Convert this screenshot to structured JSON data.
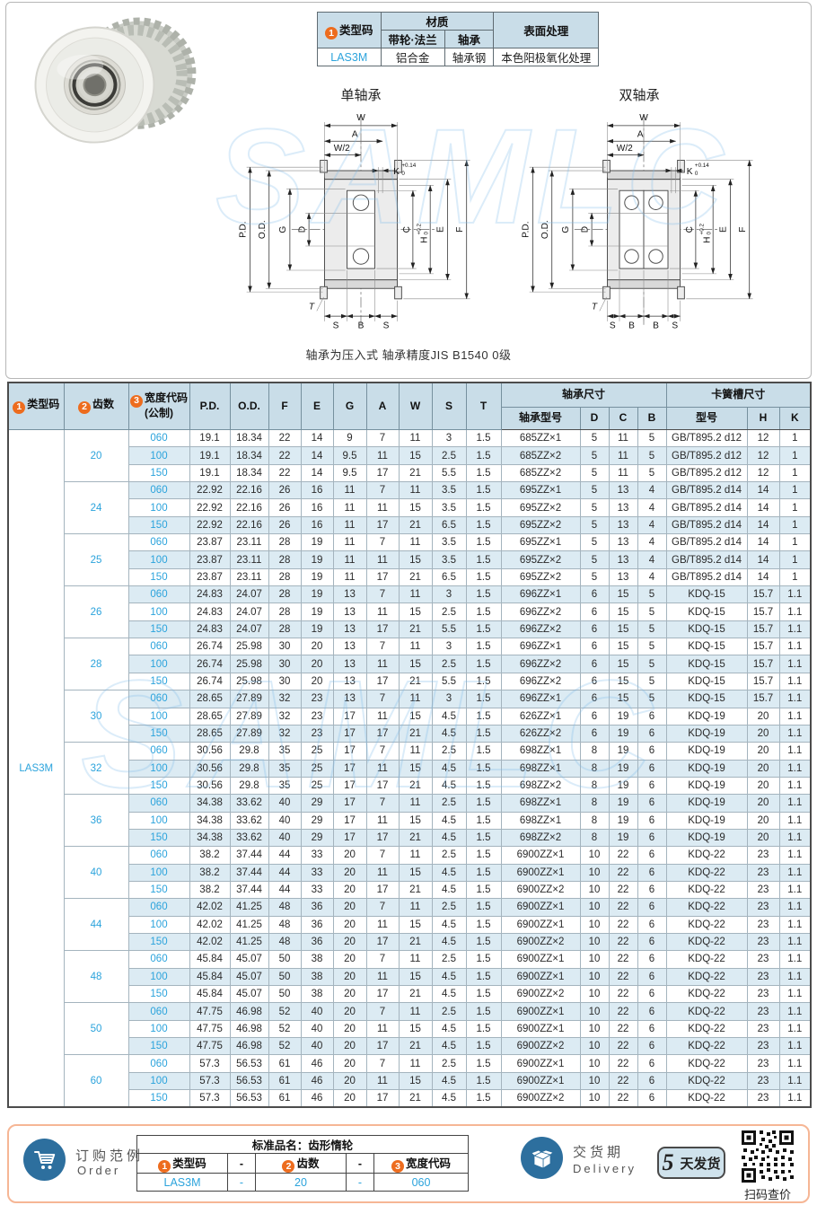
{
  "watermark": "SAMLC",
  "colors": {
    "accent_orange": "#ed6c1e",
    "accent_blue": "#2ba3dc",
    "header_bg": "#c9dde8",
    "band_bg": "#dcebf3",
    "badge_bg": "#cfe2ec",
    "bottom_border": "#f6b695",
    "icon_blue": "#2d6f9e"
  },
  "spec_table": {
    "badge1": "1",
    "h_type_code": "类型码",
    "h_material": "材质",
    "h_material_pulley": "带轮·法兰",
    "h_material_bearing": "轴承",
    "h_surface": "表面处理",
    "type_code": "LAS3M",
    "pulley_material": "铝合金",
    "bearing_material": "轴承钢",
    "surface": "本色阳极氧化处理"
  },
  "diagrams": {
    "single_title": "单轴承",
    "double_title": "双轴承",
    "note": "轴承为压入式 轴承精度JIS B1540 0级",
    "labels": {
      "w": "W",
      "a": "A",
      "w_half": "W/2",
      "k": "K",
      "k_tol_top": "+0.14",
      "k_tol_bot": "0",
      "pd": "P.D.",
      "od": "O.D.",
      "g": "G",
      "d": "D",
      "c": "C",
      "h": "H",
      "h_tol_top": "+0.2",
      "h_tol_bot": "0",
      "e": "E",
      "f": "F",
      "t": "T",
      "s": "S",
      "b": "B"
    }
  },
  "table": {
    "badge1": "1",
    "badge2": "2",
    "badge3": "3",
    "h_type_code": "类型码",
    "h_teeth": "齿数",
    "h_width_code": "宽度代码",
    "h_width_code_sub": "(公制)",
    "cols": [
      "P.D.",
      "O.D.",
      "F",
      "E",
      "G",
      "A",
      "W",
      "S",
      "T"
    ],
    "bearing_group": "轴承尺寸",
    "bearing_cols": [
      "轴承型号",
      "D",
      "C",
      "B"
    ],
    "circlip_group": "卡簧槽尺寸",
    "circlip_cols": [
      "型号",
      "H",
      "K"
    ],
    "type_code": "LAS3M",
    "groups": [
      {
        "teeth": "20",
        "rows": [
          [
            "060",
            "19.1",
            "18.34",
            "22",
            "14",
            "9",
            "7",
            "11",
            "3",
            "1.5",
            "685ZZ×1",
            "5",
            "11",
            "5",
            "GB/T895.2 d12",
            "12",
            "1"
          ],
          [
            "100",
            "19.1",
            "18.34",
            "22",
            "14",
            "9.5",
            "11",
            "15",
            "2.5",
            "1.5",
            "685ZZ×2",
            "5",
            "11",
            "5",
            "GB/T895.2 d12",
            "12",
            "1"
          ],
          [
            "150",
            "19.1",
            "18.34",
            "22",
            "14",
            "9.5",
            "17",
            "21",
            "5.5",
            "1.5",
            "685ZZ×2",
            "5",
            "11",
            "5",
            "GB/T895.2 d12",
            "12",
            "1"
          ]
        ]
      },
      {
        "teeth": "24",
        "rows": [
          [
            "060",
            "22.92",
            "22.16",
            "26",
            "16",
            "11",
            "7",
            "11",
            "3.5",
            "1.5",
            "695ZZ×1",
            "5",
            "13",
            "4",
            "GB/T895.2 d14",
            "14",
            "1"
          ],
          [
            "100",
            "22.92",
            "22.16",
            "26",
            "16",
            "11",
            "11",
            "15",
            "3.5",
            "1.5",
            "695ZZ×2",
            "5",
            "13",
            "4",
            "GB/T895.2 d14",
            "14",
            "1"
          ],
          [
            "150",
            "22.92",
            "22.16",
            "26",
            "16",
            "11",
            "17",
            "21",
            "6.5",
            "1.5",
            "695ZZ×2",
            "5",
            "13",
            "4",
            "GB/T895.2 d14",
            "14",
            "1"
          ]
        ]
      },
      {
        "teeth": "25",
        "rows": [
          [
            "060",
            "23.87",
            "23.11",
            "28",
            "19",
            "11",
            "7",
            "11",
            "3.5",
            "1.5",
            "695ZZ×1",
            "5",
            "13",
            "4",
            "GB/T895.2 d14",
            "14",
            "1"
          ],
          [
            "100",
            "23.87",
            "23.11",
            "28",
            "19",
            "11",
            "11",
            "15",
            "3.5",
            "1.5",
            "695ZZ×2",
            "5",
            "13",
            "4",
            "GB/T895.2 d14",
            "14",
            "1"
          ],
          [
            "150",
            "23.87",
            "23.11",
            "28",
            "19",
            "11",
            "17",
            "21",
            "6.5",
            "1.5",
            "695ZZ×2",
            "5",
            "13",
            "4",
            "GB/T895.2 d14",
            "14",
            "1"
          ]
        ]
      },
      {
        "teeth": "26",
        "rows": [
          [
            "060",
            "24.83",
            "24.07",
            "28",
            "19",
            "13",
            "7",
            "11",
            "3",
            "1.5",
            "696ZZ×1",
            "6",
            "15",
            "5",
            "KDQ-15",
            "15.7",
            "1.1"
          ],
          [
            "100",
            "24.83",
            "24.07",
            "28",
            "19",
            "13",
            "11",
            "15",
            "2.5",
            "1.5",
            "696ZZ×2",
            "6",
            "15",
            "5",
            "KDQ-15",
            "15.7",
            "1.1"
          ],
          [
            "150",
            "24.83",
            "24.07",
            "28",
            "19",
            "13",
            "17",
            "21",
            "5.5",
            "1.5",
            "696ZZ×2",
            "6",
            "15",
            "5",
            "KDQ-15",
            "15.7",
            "1.1"
          ]
        ]
      },
      {
        "teeth": "28",
        "rows": [
          [
            "060",
            "26.74",
            "25.98",
            "30",
            "20",
            "13",
            "7",
            "11",
            "3",
            "1.5",
            "696ZZ×1",
            "6",
            "15",
            "5",
            "KDQ-15",
            "15.7",
            "1.1"
          ],
          [
            "100",
            "26.74",
            "25.98",
            "30",
            "20",
            "13",
            "11",
            "15",
            "2.5",
            "1.5",
            "696ZZ×2",
            "6",
            "15",
            "5",
            "KDQ-15",
            "15.7",
            "1.1"
          ],
          [
            "150",
            "26.74",
            "25.98",
            "30",
            "20",
            "13",
            "17",
            "21",
            "5.5",
            "1.5",
            "696ZZ×2",
            "6",
            "15",
            "5",
            "KDQ-15",
            "15.7",
            "1.1"
          ]
        ]
      },
      {
        "teeth": "30",
        "rows": [
          [
            "060",
            "28.65",
            "27.89",
            "32",
            "23",
            "13",
            "7",
            "11",
            "3",
            "1.5",
            "696ZZ×1",
            "6",
            "15",
            "5",
            "KDQ-15",
            "15.7",
            "1.1"
          ],
          [
            "100",
            "28.65",
            "27.89",
            "32",
            "23",
            "17",
            "11",
            "15",
            "4.5",
            "1.5",
            "626ZZ×1",
            "6",
            "19",
            "6",
            "KDQ-19",
            "20",
            "1.1"
          ],
          [
            "150",
            "28.65",
            "27.89",
            "32",
            "23",
            "17",
            "17",
            "21",
            "4.5",
            "1.5",
            "626ZZ×2",
            "6",
            "19",
            "6",
            "KDQ-19",
            "20",
            "1.1"
          ]
        ]
      },
      {
        "teeth": "32",
        "rows": [
          [
            "060",
            "30.56",
            "29.8",
            "35",
            "25",
            "17",
            "7",
            "11",
            "2.5",
            "1.5",
            "698ZZ×1",
            "8",
            "19",
            "6",
            "KDQ-19",
            "20",
            "1.1"
          ],
          [
            "100",
            "30.56",
            "29.8",
            "35",
            "25",
            "17",
            "11",
            "15",
            "4.5",
            "1.5",
            "698ZZ×1",
            "8",
            "19",
            "6",
            "KDQ-19",
            "20",
            "1.1"
          ],
          [
            "150",
            "30.56",
            "29.8",
            "35",
            "25",
            "17",
            "17",
            "21",
            "4.5",
            "1.5",
            "698ZZ×2",
            "8",
            "19",
            "6",
            "KDQ-19",
            "20",
            "1.1"
          ]
        ]
      },
      {
        "teeth": "36",
        "rows": [
          [
            "060",
            "34.38",
            "33.62",
            "40",
            "29",
            "17",
            "7",
            "11",
            "2.5",
            "1.5",
            "698ZZ×1",
            "8",
            "19",
            "6",
            "KDQ-19",
            "20",
            "1.1"
          ],
          [
            "100",
            "34.38",
            "33.62",
            "40",
            "29",
            "17",
            "11",
            "15",
            "4.5",
            "1.5",
            "698ZZ×1",
            "8",
            "19",
            "6",
            "KDQ-19",
            "20",
            "1.1"
          ],
          [
            "150",
            "34.38",
            "33.62",
            "40",
            "29",
            "17",
            "17",
            "21",
            "4.5",
            "1.5",
            "698ZZ×2",
            "8",
            "19",
            "6",
            "KDQ-19",
            "20",
            "1.1"
          ]
        ]
      },
      {
        "teeth": "40",
        "rows": [
          [
            "060",
            "38.2",
            "37.44",
            "44",
            "33",
            "20",
            "7",
            "11",
            "2.5",
            "1.5",
            "6900ZZ×1",
            "10",
            "22",
            "6",
            "KDQ-22",
            "23",
            "1.1"
          ],
          [
            "100",
            "38.2",
            "37.44",
            "44",
            "33",
            "20",
            "11",
            "15",
            "4.5",
            "1.5",
            "6900ZZ×1",
            "10",
            "22",
            "6",
            "KDQ-22",
            "23",
            "1.1"
          ],
          [
            "150",
            "38.2",
            "37.44",
            "44",
            "33",
            "20",
            "17",
            "21",
            "4.5",
            "1.5",
            "6900ZZ×2",
            "10",
            "22",
            "6",
            "KDQ-22",
            "23",
            "1.1"
          ]
        ]
      },
      {
        "teeth": "44",
        "rows": [
          [
            "060",
            "42.02",
            "41.25",
            "48",
            "36",
            "20",
            "7",
            "11",
            "2.5",
            "1.5",
            "6900ZZ×1",
            "10",
            "22",
            "6",
            "KDQ-22",
            "23",
            "1.1"
          ],
          [
            "100",
            "42.02",
            "41.25",
            "48",
            "36",
            "20",
            "11",
            "15",
            "4.5",
            "1.5",
            "6900ZZ×1",
            "10",
            "22",
            "6",
            "KDQ-22",
            "23",
            "1.1"
          ],
          [
            "150",
            "42.02",
            "41.25",
            "48",
            "36",
            "20",
            "17",
            "21",
            "4.5",
            "1.5",
            "6900ZZ×2",
            "10",
            "22",
            "6",
            "KDQ-22",
            "23",
            "1.1"
          ]
        ]
      },
      {
        "teeth": "48",
        "rows": [
          [
            "060",
            "45.84",
            "45.07",
            "50",
            "38",
            "20",
            "7",
            "11",
            "2.5",
            "1.5",
            "6900ZZ×1",
            "10",
            "22",
            "6",
            "KDQ-22",
            "23",
            "1.1"
          ],
          [
            "100",
            "45.84",
            "45.07",
            "50",
            "38",
            "20",
            "11",
            "15",
            "4.5",
            "1.5",
            "6900ZZ×1",
            "10",
            "22",
            "6",
            "KDQ-22",
            "23",
            "1.1"
          ],
          [
            "150",
            "45.84",
            "45.07",
            "50",
            "38",
            "20",
            "17",
            "21",
            "4.5",
            "1.5",
            "6900ZZ×2",
            "10",
            "22",
            "6",
            "KDQ-22",
            "23",
            "1.1"
          ]
        ]
      },
      {
        "teeth": "50",
        "rows": [
          [
            "060",
            "47.75",
            "46.98",
            "52",
            "40",
            "20",
            "7",
            "11",
            "2.5",
            "1.5",
            "6900ZZ×1",
            "10",
            "22",
            "6",
            "KDQ-22",
            "23",
            "1.1"
          ],
          [
            "100",
            "47.75",
            "46.98",
            "52",
            "40",
            "20",
            "11",
            "15",
            "4.5",
            "1.5",
            "6900ZZ×1",
            "10",
            "22",
            "6",
            "KDQ-22",
            "23",
            "1.1"
          ],
          [
            "150",
            "47.75",
            "46.98",
            "52",
            "40",
            "20",
            "17",
            "21",
            "4.5",
            "1.5",
            "6900ZZ×2",
            "10",
            "22",
            "6",
            "KDQ-22",
            "23",
            "1.1"
          ]
        ]
      },
      {
        "teeth": "60",
        "rows": [
          [
            "060",
            "57.3",
            "56.53",
            "61",
            "46",
            "20",
            "7",
            "11",
            "2.5",
            "1.5",
            "6900ZZ×1",
            "10",
            "22",
            "6",
            "KDQ-22",
            "23",
            "1.1"
          ],
          [
            "100",
            "57.3",
            "56.53",
            "61",
            "46",
            "20",
            "11",
            "15",
            "4.5",
            "1.5",
            "6900ZZ×1",
            "10",
            "22",
            "6",
            "KDQ-22",
            "23",
            "1.1"
          ],
          [
            "150",
            "57.3",
            "56.53",
            "61",
            "46",
            "20",
            "17",
            "21",
            "4.5",
            "1.5",
            "6900ZZ×2",
            "10",
            "22",
            "6",
            "KDQ-22",
            "23",
            "1.1"
          ]
        ]
      }
    ]
  },
  "order": {
    "title_cn": "订购范例",
    "title_en": "Order",
    "product_label": "标准品名：齿形惰轮",
    "badge1": "1",
    "badge2": "2",
    "badge3": "3",
    "f1_label": "类型码",
    "f2_label": "齿数",
    "f3_label": "宽度代码",
    "dash": "-",
    "f1_value": "LAS3M",
    "f2_value": "20",
    "f3_value": "060"
  },
  "delivery": {
    "title_cn": "交货期",
    "title_en": "Delivery",
    "days": "5",
    "days_suffix": "天发货",
    "qr_label": "扫码查价"
  }
}
